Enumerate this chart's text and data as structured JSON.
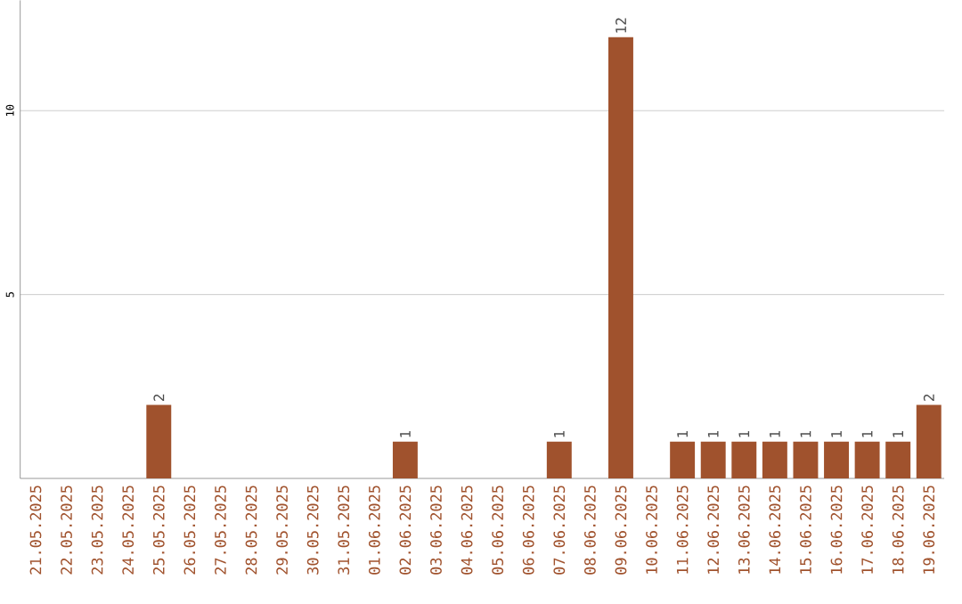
{
  "chart_data": {
    "type": "bar",
    "categories": [
      "21.05.2025",
      "22.05.2025",
      "23.05.2025",
      "24.05.2025",
      "25.05.2025",
      "26.05.2025",
      "27.05.2025",
      "28.05.2025",
      "29.05.2025",
      "30.05.2025",
      "31.05.2025",
      "01.06.2025",
      "02.06.2025",
      "03.06.2025",
      "04.06.2025",
      "05.06.2025",
      "06.06.2025",
      "07.06.2025",
      "08.06.2025",
      "09.06.2025",
      "10.06.2025",
      "11.06.2025",
      "12.06.2025",
      "13.06.2025",
      "14.06.2025",
      "15.06.2025",
      "16.06.2025",
      "17.06.2025",
      "18.06.2025",
      "19.06.2025"
    ],
    "values": [
      0,
      0,
      0,
      0,
      2,
      0,
      0,
      0,
      0,
      0,
      0,
      0,
      1,
      0,
      0,
      0,
      0,
      1,
      0,
      12,
      0,
      1,
      1,
      1,
      1,
      1,
      1,
      1,
      1,
      2
    ],
    "value_labels": [
      null,
      null,
      null,
      null,
      "2",
      null,
      null,
      null,
      null,
      null,
      null,
      null,
      "1",
      null,
      null,
      null,
      null,
      "1",
      null,
      "12",
      null,
      "1",
      "1",
      "1",
      "1",
      "1",
      "1",
      "1",
      "1",
      "2"
    ],
    "color": "#a0522d",
    "ylim": [
      0,
      13
    ],
    "yticks": [
      5,
      10
    ],
    "grid": "y"
  }
}
